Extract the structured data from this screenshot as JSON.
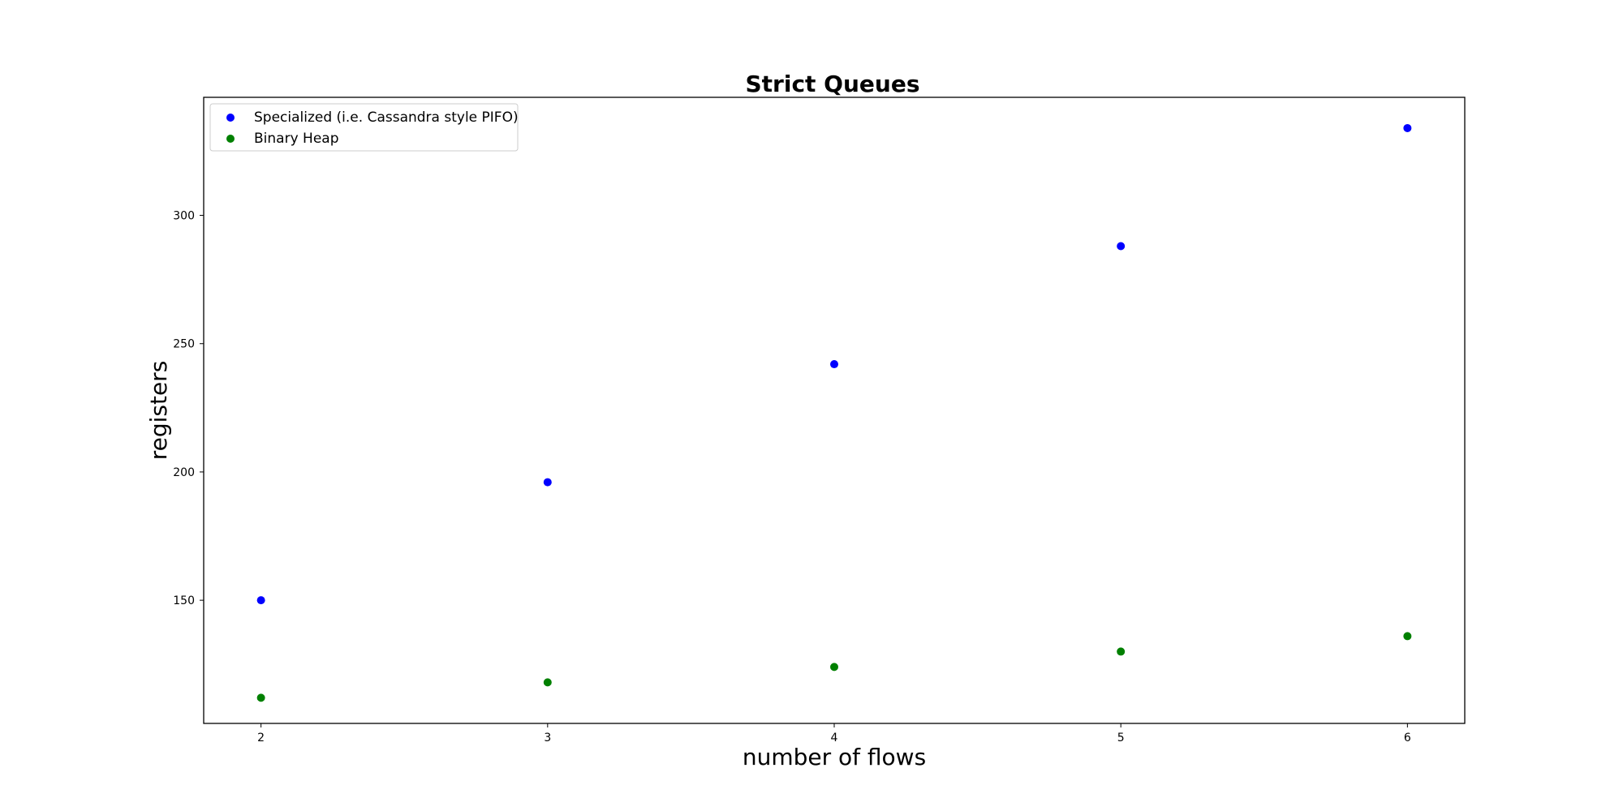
{
  "chart_data": {
    "type": "scatter",
    "title": "Strict Queues",
    "xlabel": "number of flows",
    "ylabel": "registers",
    "xlim": [
      1.8,
      6.2
    ],
    "ylim": [
      102,
      346
    ],
    "xticks": [
      2,
      3,
      4,
      5,
      6
    ],
    "yticks": [
      150,
      200,
      250,
      300
    ],
    "grid": false,
    "legend_position": "top-left",
    "series": [
      {
        "name": "Specialized (i.e. Cassandra style PIFO)",
        "color": "#0000ff",
        "x": [
          2,
          3,
          4,
          5,
          6
        ],
        "y": [
          150,
          196,
          242,
          288,
          334
        ]
      },
      {
        "name": "Binary Heap",
        "color": "#008000",
        "x": [
          2,
          3,
          4,
          5,
          6
        ],
        "y": [
          112,
          118,
          124,
          130,
          136
        ]
      }
    ]
  }
}
